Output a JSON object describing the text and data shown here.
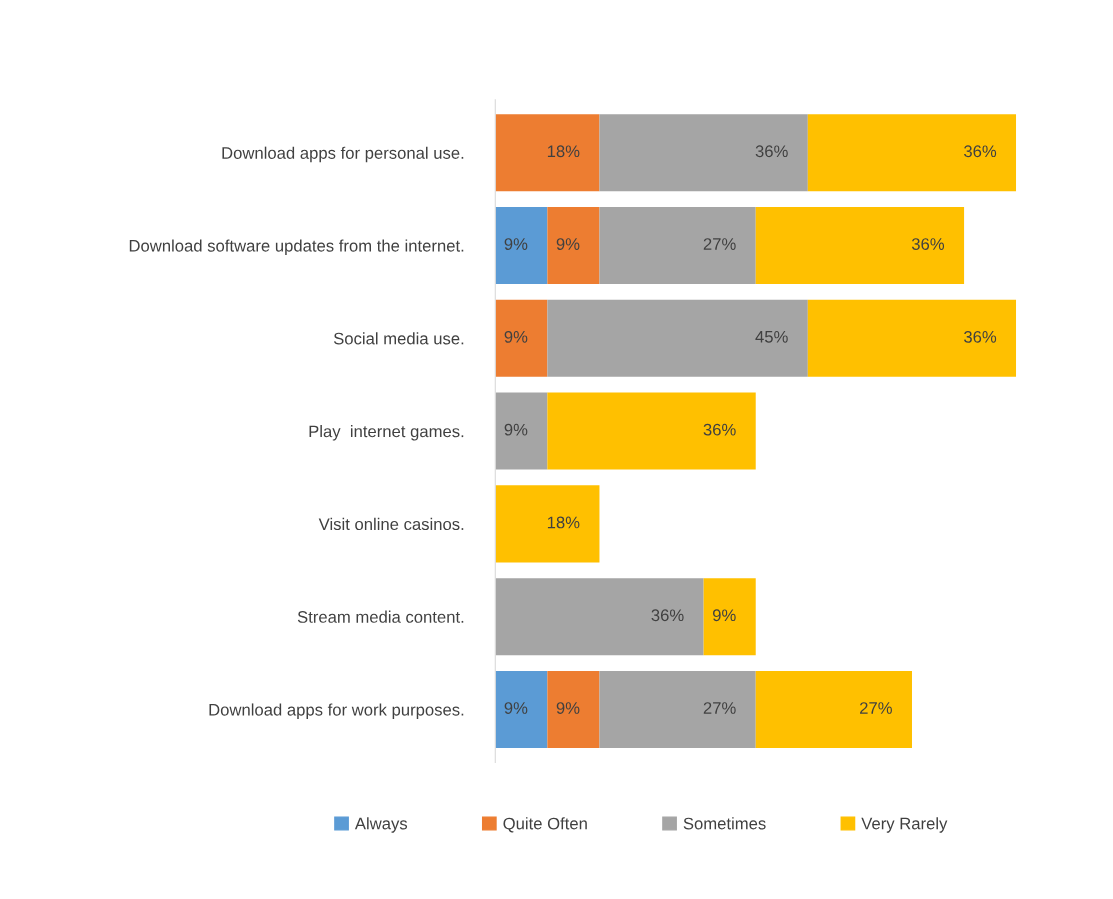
{
  "chart_data": {
    "type": "bar",
    "orientation": "horizontal",
    "stacked": true,
    "legend": "bottom",
    "grid": false,
    "categories": [
      "Download apps for personal use.",
      "Download software updates from the internet.",
      "Social media use.",
      "Play  internet games.",
      "Visit online casinos.",
      "Stream media content.",
      "Download apps for work purposes."
    ],
    "series": [
      {
        "name": "Always",
        "color": "#5b9bd5",
        "values": [
          null,
          9,
          null,
          null,
          null,
          null,
          9
        ],
        "value_labels": [
          null,
          "9%",
          null,
          null,
          null,
          null,
          "9%"
        ]
      },
      {
        "name": "Quite Often",
        "color": "#ed7d31",
        "values": [
          18,
          9,
          9,
          null,
          null,
          null,
          9
        ],
        "value_labels": [
          "18%",
          "9%",
          "9%",
          null,
          null,
          null,
          "9%"
        ]
      },
      {
        "name": "Sometimes",
        "color": "#a5a5a5",
        "values": [
          36,
          27,
          45,
          9,
          null,
          36,
          27
        ],
        "value_labels": [
          "36%",
          "27%",
          "45%",
          "9%",
          null,
          "36%",
          "27%"
        ]
      },
      {
        "name": "Very Rarely",
        "color": "#ffc000",
        "values": [
          36,
          36,
          36,
          36,
          18,
          9,
          27
        ],
        "value_labels": [
          "36%",
          "36%",
          "36%",
          "36%",
          "18%",
          "9%",
          "27%"
        ]
      }
    ]
  }
}
